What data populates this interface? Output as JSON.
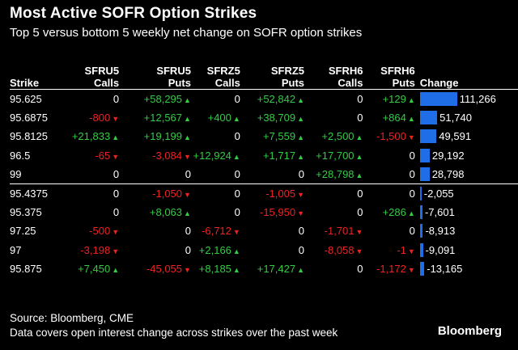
{
  "title": "Most Active SOFR Option Strikes",
  "subtitle": "Top 5 versus bottom 5 weekly net change on SOFR option strikes",
  "headers": [
    "Strike",
    "SFRU5 Calls",
    "SFRU5 Puts",
    "SFRZ5 Calls",
    "SFRZ5 Puts",
    "SFRH6 Calls",
    "SFRH6 Puts",
    "Change"
  ],
  "colors": {
    "positive": "#33cc44",
    "negative": "#ee2222",
    "bar": "#1f6ee8",
    "background": "#000000"
  },
  "rows": [
    {
      "strike": "95.625",
      "cells": [
        "0",
        "+58,295",
        "0",
        "+52,842",
        "0",
        "+129"
      ],
      "change": "111,266"
    },
    {
      "strike": "95.6875",
      "cells": [
        "-800",
        "+12,567",
        "+400",
        "+38,709",
        "0",
        "+864"
      ],
      "change": "51,740"
    },
    {
      "strike": "95.8125",
      "cells": [
        "+21,833",
        "+19,199",
        "0",
        "+7,559",
        "+2,500",
        "-1,500"
      ],
      "change": "49,591"
    },
    {
      "strike": "96.5",
      "cells": [
        "-65",
        "-3,084",
        "+12,924",
        "+1,717",
        "+17,700",
        "0"
      ],
      "change": "29,192"
    },
    {
      "strike": "99",
      "cells": [
        "0",
        "0",
        "0",
        "0",
        "+28,798",
        "0"
      ],
      "change": "28,798"
    },
    {
      "strike": "95.4375",
      "cells": [
        "0",
        "-1,050",
        "0",
        "-1,005",
        "0",
        "0"
      ],
      "change": "-2,055"
    },
    {
      "strike": "95.375",
      "cells": [
        "0",
        "+8,063",
        "0",
        "-15,950",
        "0",
        "+286"
      ],
      "change": "-7,601"
    },
    {
      "strike": "97.25",
      "cells": [
        "-500",
        "0",
        "-6,712",
        "0",
        "-1,701",
        "0"
      ],
      "change": "-8,913"
    },
    {
      "strike": "97",
      "cells": [
        "-3,198",
        "0",
        "+2,166",
        "0",
        "-8,058",
        "-1"
      ],
      "change": "-9,091"
    },
    {
      "strike": "95.875",
      "cells": [
        "+7,450",
        "-45,055",
        "+8,185",
        "+17,427",
        "0",
        "-1,172"
      ],
      "change": "-13,165"
    }
  ],
  "chart_data": {
    "type": "bar",
    "orientation": "horizontal",
    "categories": [
      "95.625",
      "95.6875",
      "95.8125",
      "96.5",
      "99",
      "95.4375",
      "95.375",
      "97.25",
      "97",
      "95.875"
    ],
    "values": [
      111266,
      51740,
      49591,
      29192,
      28798,
      -2055,
      -7601,
      -8913,
      -9091,
      -13165
    ],
    "xlabel": "Change",
    "ylabel": "Strike",
    "title": "Most Active SOFR Option Strikes"
  },
  "source": "Source: Bloomberg, CME",
  "note": "Data covers open interest change across strikes over the past week",
  "logo": "Bloomberg"
}
